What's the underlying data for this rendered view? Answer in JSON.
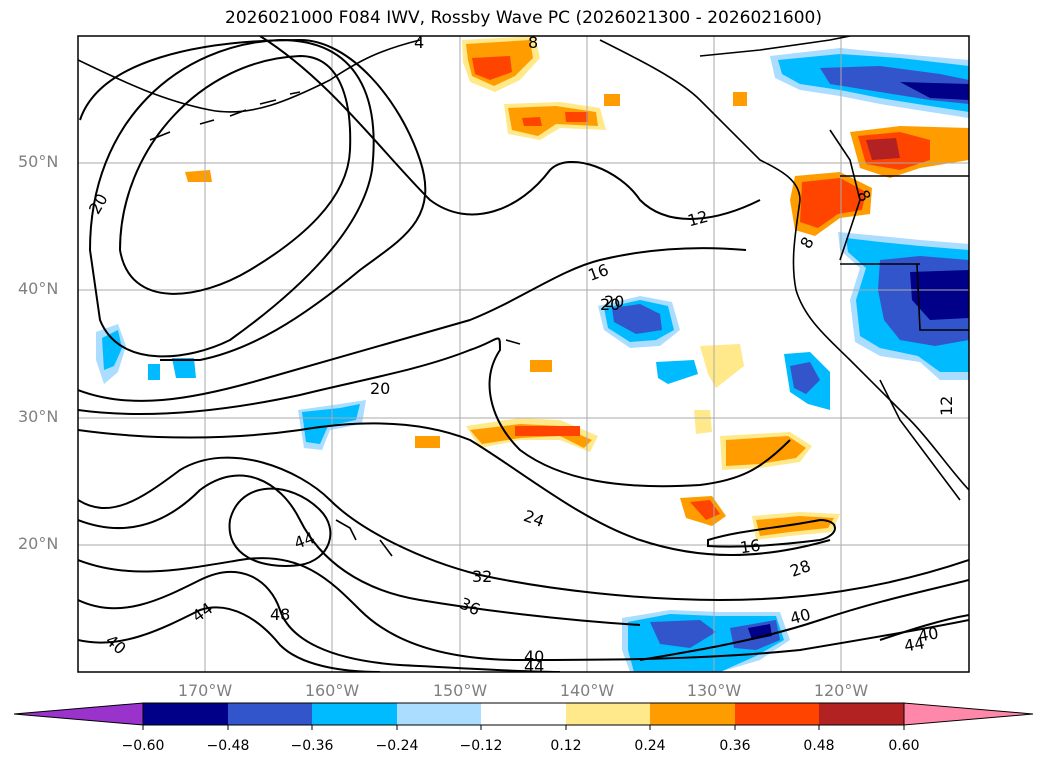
{
  "title": "2026021000 F084 IWV, Rossby Wave PC (2026021300 - 2026021600)",
  "latitude_labels": [
    "50°N",
    "40°N",
    "30°N",
    "20°N"
  ],
  "longitude_labels": [
    "170°W",
    "160°W",
    "150°W",
    "140°W",
    "130°W",
    "120°W"
  ],
  "contour_labels": [
    "20",
    "20",
    "20",
    "12",
    "16",
    "20",
    "24",
    "32",
    "36",
    "44",
    "48",
    "44",
    "40",
    "16",
    "28",
    "40",
    "40",
    "44",
    "8",
    "8",
    "12",
    "44",
    "40",
    "4",
    "8"
  ],
  "colorbar": {
    "ticks": [
      "−0.60",
      "−0.48",
      "−0.36",
      "−0.24",
      "−0.12",
      "0.12",
      "0.24",
      "0.36",
      "0.48",
      "0.60"
    ],
    "colors": [
      "#9933cc",
      "#000088",
      "#3355cc",
      "#00bbff",
      "#aaddff",
      "#ffffff",
      "#ffe98a",
      "#ff9d00",
      "#ff4400",
      "#b22222",
      "#ff88aa"
    ]
  },
  "colors": {
    "land_coast": "#000000",
    "contour": "#000000",
    "grid": "#aaaaaa",
    "axis_labels": "#808080"
  }
}
